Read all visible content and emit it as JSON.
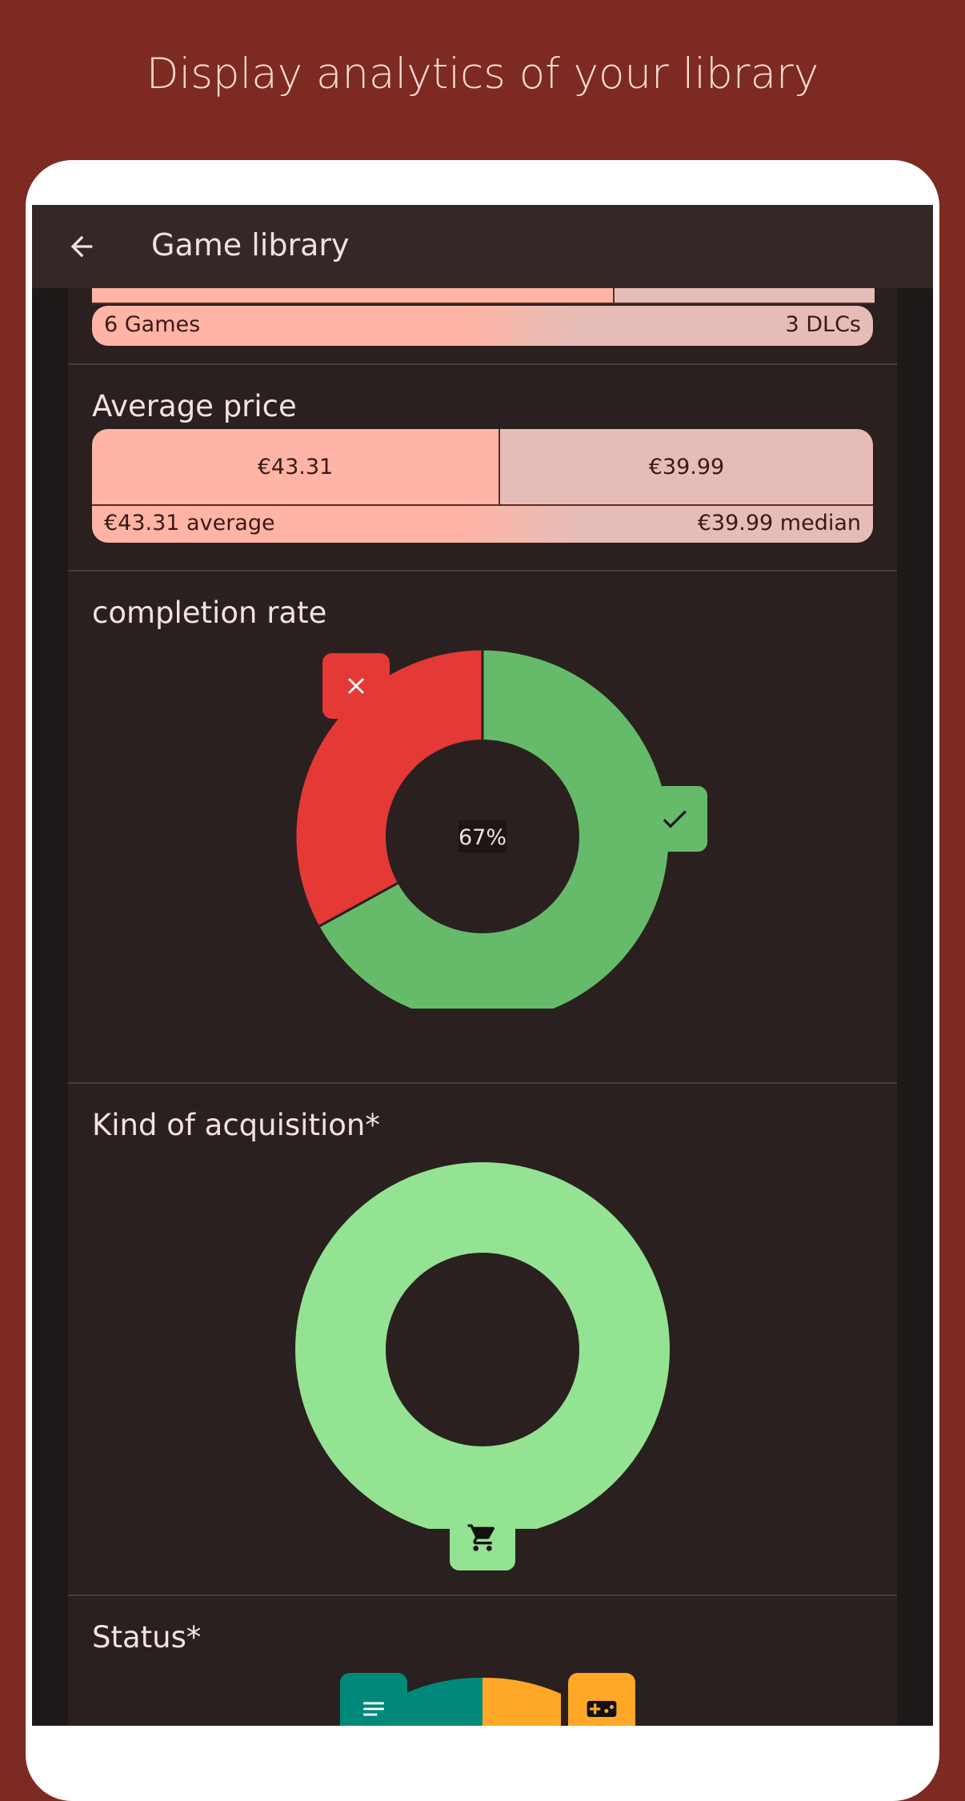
{
  "headline": "Display analytics of your library",
  "appbar": {
    "title": "Game library",
    "back_icon": "arrow-back-icon"
  },
  "count_section": {
    "games_label": "6 Games",
    "dlcs_label": "3 DLCs",
    "games_count": 6,
    "dlcs_count": 3
  },
  "price_section": {
    "title": "Average price",
    "average_value": "€43.31",
    "median_value": "€39.99",
    "average_label": "€43.31 average",
    "median_label": "€39.99 median"
  },
  "completion_section": {
    "title": "completion rate",
    "center_label": "67%",
    "completed_icon": "check-icon",
    "not_completed_icon": "close-icon",
    "colors": {
      "completed": "#66bb6a",
      "not_completed": "#e53935"
    }
  },
  "acquisition_section": {
    "title": "Kind of acquisition*",
    "icon": "cart-icon",
    "color": "#93e393"
  },
  "status_section": {
    "title": "Status*",
    "icons": [
      "list-icon",
      "gamepad-icon"
    ],
    "colors": [
      "#00897b",
      "#ffa726"
    ]
  },
  "chart_data": [
    {
      "type": "pie",
      "title": "completion rate",
      "categories": [
        "completed",
        "not completed"
      ],
      "values": [
        67,
        33
      ],
      "center_label": "67%"
    },
    {
      "type": "pie",
      "title": "Kind of acquisition*",
      "categories": [
        "bought"
      ],
      "values": [
        100
      ]
    }
  ]
}
